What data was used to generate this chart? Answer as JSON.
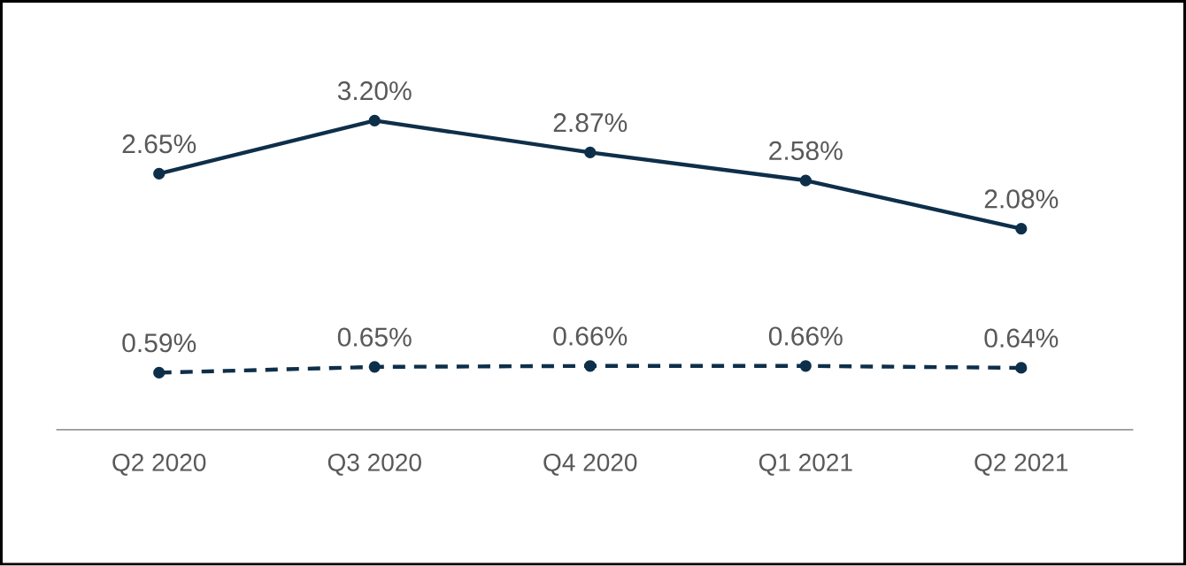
{
  "chart_data": {
    "type": "line",
    "categories": [
      "Q2 2020",
      "Q3 2020",
      "Q4 2020",
      "Q1 2021",
      "Q2 2021"
    ],
    "marker": "circle",
    "series": [
      {
        "color": "#0e2f4a",
        "line_style": "solid",
        "values": [
          2.65,
          3.2,
          2.87,
          2.58,
          2.08
        ],
        "value_labels": [
          "2.65%",
          "3.20%",
          "2.87%",
          "2.58%",
          "2.08%"
        ]
      },
      {
        "color": "#0e2f4a",
        "line_style": "dashed",
        "values": [
          0.59,
          0.65,
          0.66,
          0.66,
          0.64
        ],
        "value_labels": [
          "0.59%",
          "0.65%",
          "0.66%",
          "0.66%",
          "0.64%"
        ]
      }
    ]
  }
}
